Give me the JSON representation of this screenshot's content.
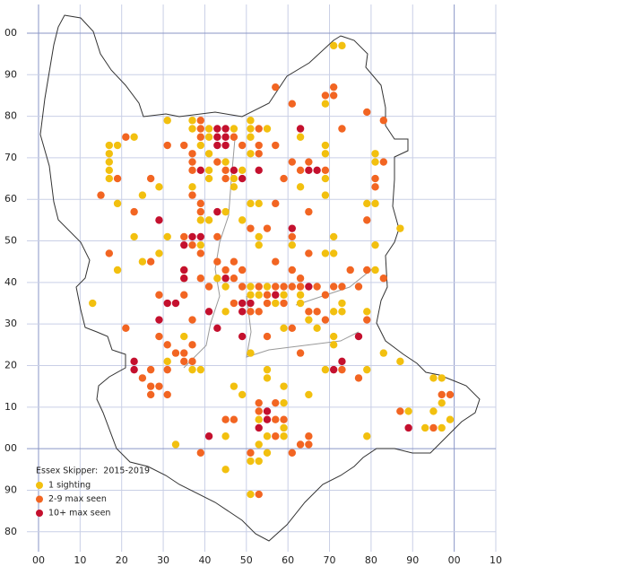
{
  "chart_data": {
    "type": "scatter",
    "legend_title": "Essex Skipper:  2015-2019",
    "xlim": [
      -2.8,
      110
    ],
    "ylim": [
      -24.8,
      106.9
    ],
    "xticks": [
      {
        "value": 0,
        "label": "00"
      },
      10,
      20,
      30,
      40,
      50,
      60,
      70,
      80,
      90,
      {
        "value": 100,
        "label": "00"
      },
      {
        "value": 110,
        "label": "10"
      }
    ],
    "yticks": [
      {
        "value": 100,
        "label": "00"
      },
      90,
      80,
      70,
      60,
      50,
      40,
      30,
      20,
      10,
      {
        "value": 0,
        "label": "00"
      },
      {
        "value": -10,
        "label": "90"
      },
      {
        "value": -20,
        "label": "80"
      }
    ],
    "grid": true,
    "series": [
      {
        "name": "1 sighting",
        "color": "#f2c00f",
        "x": [
          71,
          73,
          69,
          31,
          37,
          51,
          37,
          41,
          47,
          51,
          55,
          23,
          41,
          51,
          63,
          39,
          69,
          17,
          19,
          17,
          41,
          51,
          69,
          81,
          17,
          45,
          81,
          17,
          41,
          49,
          17,
          41,
          47,
          69,
          29,
          37,
          47,
          63,
          25,
          69,
          19,
          51,
          53,
          79,
          81,
          45,
          39,
          41,
          49,
          87,
          23,
          31,
          53,
          71,
          39,
          53,
          61,
          81,
          29,
          69,
          71,
          25,
          19,
          35,
          81,
          35,
          43,
          45,
          51,
          55,
          51,
          53,
          59,
          63,
          13,
          57,
          63,
          73,
          45,
          71,
          73,
          79,
          65,
          59,
          67,
          35,
          71,
          71,
          51,
          83,
          31,
          87,
          37,
          39,
          55,
          69,
          79,
          55,
          95,
          97,
          47,
          59,
          49,
          65,
          59,
          97,
          89,
          95,
          53,
          99,
          59,
          93,
          97,
          45,
          55,
          59,
          79,
          33,
          53,
          55,
          51,
          53,
          45,
          51
        ],
        "y": [
          97,
          97,
          83,
          79,
          79,
          79,
          77,
          77,
          77,
          77,
          77,
          75,
          75,
          75,
          75,
          73,
          73,
          73,
          73,
          71,
          71,
          71,
          71,
          71,
          69,
          69,
          69,
          67,
          67,
          67,
          65,
          65,
          65,
          65,
          63,
          63,
          63,
          63,
          61,
          61,
          59,
          59,
          59,
          59,
          59,
          57,
          55,
          55,
          55,
          53,
          51,
          51,
          51,
          51,
          49,
          49,
          49,
          49,
          47,
          47,
          47,
          45,
          43,
          43,
          43,
          41,
          41,
          39,
          39,
          39,
          37,
          37,
          37,
          37,
          35,
          35,
          35,
          35,
          33,
          33,
          33,
          33,
          31,
          29,
          29,
          27,
          27,
          25,
          23,
          23,
          21,
          21,
          19,
          19,
          19,
          19,
          19,
          17,
          17,
          17,
          15,
          15,
          13,
          13,
          11,
          11,
          9,
          9,
          7,
          7,
          5,
          5,
          5,
          3,
          3,
          3,
          3,
          1,
          1,
          -1,
          -3,
          -3,
          -5,
          -11
        ]
      },
      {
        "name": "2-9 max seen",
        "color": "#f26522",
        "x": [
          71,
          57,
          69,
          71,
          61,
          79,
          83,
          39,
          39,
          53,
          73,
          21,
          39,
          47,
          31,
          35,
          49,
          53,
          57,
          37,
          53,
          37,
          43,
          61,
          65,
          83,
          37,
          45,
          63,
          69,
          19,
          27,
          45,
          59,
          81,
          81,
          15,
          37,
          39,
          57,
          23,
          39,
          65,
          79,
          51,
          55,
          35,
          43,
          61,
          37,
          17,
          39,
          65,
          27,
          43,
          47,
          57,
          45,
          49,
          61,
          75,
          79,
          39,
          47,
          63,
          83,
          41,
          49,
          53,
          57,
          59,
          61,
          63,
          67,
          71,
          73,
          77,
          29,
          35,
          55,
          69,
          47,
          55,
          59,
          51,
          53,
          65,
          67,
          37,
          69,
          79,
          21,
          61,
          29,
          55,
          31,
          37,
          33,
          35,
          63,
          35,
          37,
          27,
          31,
          73,
          25,
          77,
          27,
          29,
          27,
          31,
          97,
          99,
          53,
          57,
          53,
          87,
          45,
          47,
          57,
          59,
          95,
          57,
          65,
          63,
          65,
          39,
          51,
          61,
          53
        ],
        "y": [
          87,
          87,
          85,
          85,
          83,
          81,
          79,
          79,
          77,
          77,
          77,
          75,
          75,
          75,
          73,
          73,
          73,
          73,
          73,
          71,
          71,
          69,
          69,
          69,
          69,
          69,
          67,
          67,
          67,
          67,
          65,
          65,
          65,
          65,
          65,
          63,
          61,
          61,
          59,
          59,
          57,
          57,
          57,
          55,
          53,
          53,
          51,
          51,
          51,
          49,
          47,
          47,
          47,
          45,
          45,
          45,
          45,
          43,
          43,
          43,
          43,
          43,
          41,
          41,
          41,
          41,
          39,
          39,
          39,
          39,
          39,
          39,
          39,
          39,
          39,
          39,
          39,
          37,
          37,
          37,
          37,
          35,
          35,
          35,
          33,
          33,
          33,
          33,
          31,
          31,
          31,
          29,
          29,
          27,
          27,
          25,
          25,
          23,
          23,
          23,
          21,
          21,
          19,
          19,
          19,
          17,
          17,
          15,
          15,
          13,
          13,
          13,
          13,
          11,
          11,
          9,
          9,
          7,
          7,
          7,
          7,
          5,
          3,
          3,
          1,
          1,
          -1,
          -1,
          -1,
          -11
        ]
      },
      {
        "name": "10+ max seen",
        "color": "#c4102e",
        "x": [
          29,
          31,
          29,
          23,
          23,
          33,
          35,
          35,
          35,
          37,
          39,
          39,
          41,
          41,
          43,
          43,
          45,
          43,
          45,
          43,
          45,
          43,
          45,
          47,
          49,
          49,
          51,
          49,
          49,
          53,
          55,
          55,
          53,
          57,
          61,
          63,
          65,
          65,
          67,
          71,
          73,
          77,
          89
        ],
        "y": [
          55,
          35,
          31,
          21,
          19,
          35,
          49,
          43,
          41,
          51,
          51,
          67,
          33,
          3,
          57,
          29,
          41,
          77,
          77,
          75,
          75,
          73,
          73,
          67,
          65,
          35,
          35,
          33,
          27,
          67,
          9,
          7,
          5,
          37,
          53,
          77,
          39,
          67,
          67,
          19,
          21,
          27,
          5
        ]
      }
    ]
  }
}
